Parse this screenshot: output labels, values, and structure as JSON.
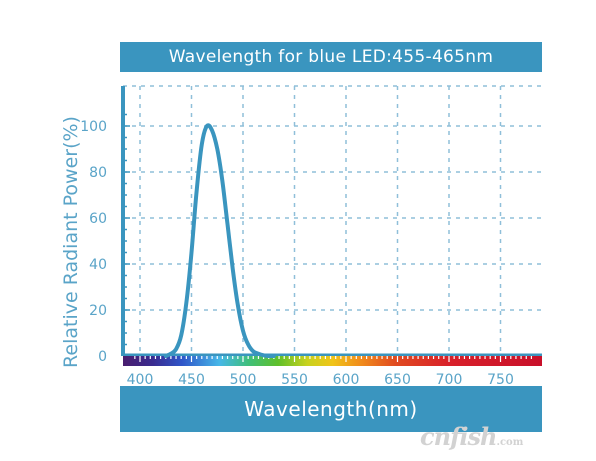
{
  "chart_data": {
    "type": "line",
    "title": "Wavelength for blue LED:455-465nm",
    "xlabel": "Wavelength(nm)",
    "ylabel": "Relative Radiant Power(%)",
    "x_ticks": [
      400,
      450,
      500,
      550,
      600,
      650,
      700,
      750
    ],
    "y_ticks": [
      0,
      20,
      40,
      60,
      80,
      100
    ],
    "xlim": [
      395,
      785
    ],
    "ylim": [
      0,
      110
    ],
    "grid": true,
    "series": [
      {
        "x": [
          425,
          430,
          435,
          440,
          445,
          450,
          455,
          460,
          465,
          470,
          475,
          480,
          485,
          490,
          495,
          500,
          505,
          510,
          515,
          520,
          525,
          530
        ],
        "y": [
          0,
          1,
          3,
          9,
          23,
          45,
          72,
          92,
          100,
          98,
          90,
          76,
          57,
          38,
          22,
          11,
          5,
          2,
          1,
          0.3,
          0,
          0
        ],
        "color": "#3a95bf"
      }
    ],
    "spectrum_bar": true
  },
  "colors": {
    "accent": "#3a95bf",
    "grid": "#8fbfd9"
  },
  "watermark": {
    "main": "cnfish",
    "suffix": ".com"
  }
}
